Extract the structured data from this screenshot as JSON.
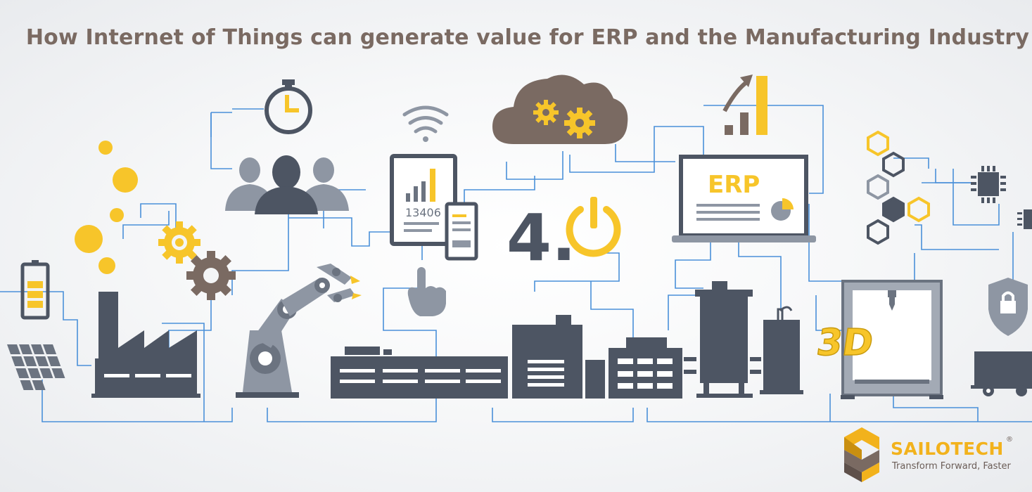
{
  "title": "How Internet of Things can generate value for ERP and the Manufacturing Industry",
  "labels": {
    "counter": "13406",
    "erp": "ERP",
    "industry": "4.",
    "printer": "3D"
  },
  "brand": {
    "name": "SAILOTECH",
    "tagline": "Transform Forward, Faster",
    "registered": "®"
  },
  "colors": {
    "accent": "#f7c52a",
    "dark": "#4d5563",
    "wire": "#4a90d9",
    "title": "#7a6a62"
  }
}
